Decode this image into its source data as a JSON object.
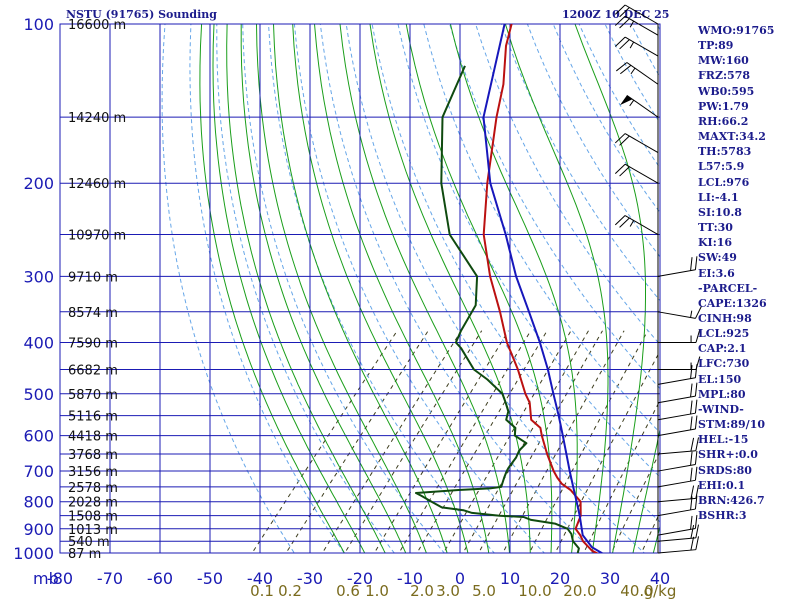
{
  "header": {
    "station": "NSTU (91765) Sounding",
    "time": "1200Z 10 DEC 25"
  },
  "indices": [
    "WMO:91765",
    "TP:89",
    "MW:160",
    "FRZ:578",
    "WB0:595",
    "PW:1.79",
    "RH:66.2",
    "MAXT:34.2",
    "TH:5783",
    "L57:5.9",
    "LCL:976",
    "LI:-4.1",
    "SI:10.8",
    "TT:30",
    "KI:16",
    "SW:49",
    "EI:3.6",
    "-PARCEL-",
    "CAPE:1326",
    "CINH:98",
    "LCL:925",
    "CAP:2.1",
    "LFC:730",
    "EL:150",
    "MPL:80",
    "-WIND-",
    "STM:89/10",
    "HEL:-15",
    "SHR+:0.0",
    "SRDS:80",
    "EHI:0.1",
    "BRN:426.7",
    "BSHR:3"
  ],
  "chart_data": {
    "type": "skew-t",
    "title": "NSTU (91765) Sounding",
    "xlabel": "Temperature (C)",
    "ylabel": "mb",
    "pressure_ticks": [
      100,
      200,
      300,
      400,
      500,
      600,
      700,
      800,
      900,
      1000
    ],
    "temp_ticks": [
      -80,
      -70,
      -60,
      -50,
      -40,
      -30,
      -20,
      -10,
      0,
      10,
      20,
      30,
      40
    ],
    "mixing_ratio_labels": [
      "0.1",
      "0.2",
      "0.6",
      "1.0",
      "2.0",
      "3.0",
      "5.0",
      "10.0",
      "20.0",
      "40.0"
    ],
    "mixing_ratio_unit": "g/kg",
    "height_labels": [
      {
        "p": 100,
        "label": "16600 m"
      },
      {
        "p": 150,
        "label": "14240 m"
      },
      {
        "p": 200,
        "label": "12460 m"
      },
      {
        "p": 250,
        "label": "10970 m"
      },
      {
        "p": 300,
        "label": "9710 m"
      },
      {
        "p": 350,
        "label": "8574 m"
      },
      {
        "p": 400,
        "label": "7590 m"
      },
      {
        "p": 450,
        "label": "6682 m"
      },
      {
        "p": 500,
        "label": "5870 m"
      },
      {
        "p": 550,
        "label": "5116 m"
      },
      {
        "p": 600,
        "label": "4418 m"
      },
      {
        "p": 650,
        "label": "3768 m"
      },
      {
        "p": 700,
        "label": "3156 m"
      },
      {
        "p": 750,
        "label": "2578 m"
      },
      {
        "p": 800,
        "label": "2028 m"
      },
      {
        "p": 850,
        "label": "1508 m"
      },
      {
        "p": 900,
        "label": "1013 m"
      },
      {
        "p": 950,
        "label": "540 m"
      },
      {
        "p": 1000,
        "label": "87 m"
      }
    ],
    "series": [
      {
        "name": "temperature",
        "color": "#bb1111",
        "points": [
          [
            1002,
            27.6
          ],
          [
            990,
            26.0
          ],
          [
            950,
            22.6
          ],
          [
            925,
            21.0
          ],
          [
            900,
            19.0
          ],
          [
            850,
            17.8
          ],
          [
            800,
            15.4
          ],
          [
            760,
            11.4
          ],
          [
            740,
            8.6
          ],
          [
            720,
            6.6
          ],
          [
            700,
            4.8
          ],
          [
            650,
            0.6
          ],
          [
            600,
            -3.6
          ],
          [
            580,
            -5.2
          ],
          [
            560,
            -8.4
          ],
          [
            520,
            -11.6
          ],
          [
            500,
            -14.0
          ],
          [
            450,
            -19.6
          ],
          [
            400,
            -26.4
          ],
          [
            350,
            -33.0
          ],
          [
            300,
            -41.0
          ],
          [
            250,
            -49.4
          ],
          [
            200,
            -57.4
          ],
          [
            150,
            -66.8
          ],
          [
            130,
            -71.0
          ],
          [
            110,
            -77.0
          ],
          [
            100,
            -79.6
          ]
        ]
      },
      {
        "name": "dewpoint",
        "color": "#0f4a0f",
        "points": [
          [
            1002,
            23.6
          ],
          [
            980,
            23.0
          ],
          [
            950,
            20.6
          ],
          [
            920,
            19.0
          ],
          [
            900,
            17.4
          ],
          [
            880,
            14.0
          ],
          [
            866,
            8.6
          ],
          [
            855,
            6.6
          ],
          [
            850,
            1.6
          ],
          [
            840,
            -4.4
          ],
          [
            830,
            -6.6
          ],
          [
            820,
            -11.4
          ],
          [
            800,
            -14.4
          ],
          [
            780,
            -17.4
          ],
          [
            770,
            -19.0
          ],
          [
            760,
            -11.0
          ],
          [
            755,
            -5.0
          ],
          [
            750,
            -3.0
          ],
          [
            720,
            -4.0
          ],
          [
            700,
            -4.6
          ],
          [
            690,
            -4.8
          ],
          [
            660,
            -5.0
          ],
          [
            640,
            -5.6
          ],
          [
            620,
            -5.4
          ],
          [
            600,
            -9.0
          ],
          [
            580,
            -10.2
          ],
          [
            560,
            -13.4
          ],
          [
            540,
            -14.4
          ],
          [
            520,
            -16.4
          ],
          [
            500,
            -18.6
          ],
          [
            470,
            -24.0
          ],
          [
            450,
            -28.4
          ],
          [
            410,
            -34.6
          ],
          [
            400,
            -36.6
          ],
          [
            380,
            -37.6
          ],
          [
            340,
            -39.0
          ],
          [
            300,
            -43.6
          ],
          [
            250,
            -56.2
          ],
          [
            200,
            -66.6
          ],
          [
            150,
            -77.6
          ],
          [
            120,
            -81.8
          ]
        ]
      },
      {
        "name": "parcel",
        "color": "#1717bb",
        "points": [
          [
            1002,
            28.6
          ],
          [
            975,
            25.4
          ],
          [
            925,
            21.5
          ],
          [
            850,
            17.6
          ],
          [
            800,
            14.6
          ],
          [
            750,
            11.4
          ],
          [
            700,
            8.0
          ],
          [
            600,
            0.6
          ],
          [
            550,
            -3.6
          ],
          [
            500,
            -8.4
          ],
          [
            450,
            -13.6
          ],
          [
            400,
            -19.8
          ],
          [
            350,
            -27.2
          ],
          [
            300,
            -35.8
          ],
          [
            250,
            -45.0
          ],
          [
            200,
            -56.8
          ],
          [
            150,
            -69.4
          ],
          [
            100,
            -81.0
          ]
        ]
      }
    ],
    "wind_barbs": [
      {
        "p": 1000,
        "dir": 85,
        "spd": 20
      },
      {
        "p": 950,
        "dir": 85,
        "spd": 20
      },
      {
        "p": 925,
        "dir": 80,
        "spd": 20
      },
      {
        "p": 850,
        "dir": 80,
        "spd": 20
      },
      {
        "p": 800,
        "dir": 85,
        "spd": 20
      },
      {
        "p": 750,
        "dir": 80,
        "spd": 20
      },
      {
        "p": 700,
        "dir": 80,
        "spd": 20
      },
      {
        "p": 650,
        "dir": 85,
        "spd": 20
      },
      {
        "p": 600,
        "dir": 80,
        "spd": 20
      },
      {
        "p": 560,
        "dir": 80,
        "spd": 20
      },
      {
        "p": 520,
        "dir": 80,
        "spd": 20
      },
      {
        "p": 480,
        "dir": 80,
        "spd": 20
      },
      {
        "p": 450,
        "dir": 90,
        "spd": 15
      },
      {
        "p": 400,
        "dir": 90,
        "spd": 15
      },
      {
        "p": 350,
        "dir": 100,
        "spd": 15
      },
      {
        "p": 300,
        "dir": 80,
        "spd": 20
      },
      {
        "p": 250,
        "dir": 300,
        "spd": 25
      },
      {
        "p": 200,
        "dir": 300,
        "spd": 20
      },
      {
        "p": 175,
        "dir": 300,
        "spd": 20
      },
      {
        "p": 150,
        "dir": 305,
        "spd": 55
      },
      {
        "p": 130,
        "dir": 305,
        "spd": 25
      },
      {
        "p": 115,
        "dir": 300,
        "spd": 25
      },
      {
        "p": 105,
        "dir": 300,
        "spd": 25
      },
      {
        "p": 100,
        "dir": 300,
        "spd": 20
      }
    ]
  }
}
